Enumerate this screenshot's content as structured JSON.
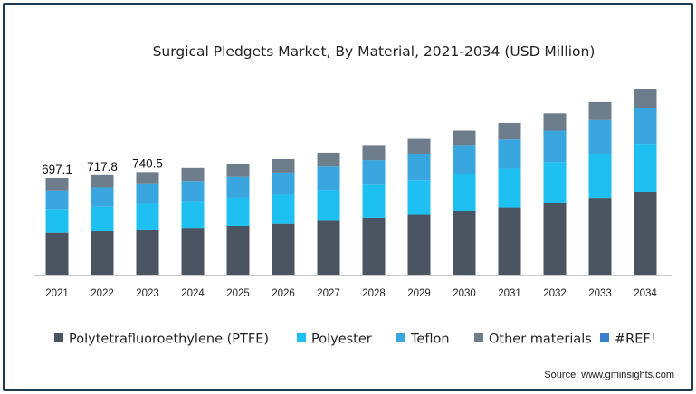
{
  "chart_data": {
    "type": "bar",
    "stacked": true,
    "title": "Surgical Pledgets Market, By Material, 2021-2034 (USD Million)",
    "xlabel": "",
    "ylabel": "",
    "ylim": [
      0,
      1500
    ],
    "grid": false,
    "legend_position": "bottom",
    "categories": [
      "2021",
      "2022",
      "2023",
      "2024",
      "2025",
      "2026",
      "2027",
      "2028",
      "2029",
      "2030",
      "2031",
      "2032",
      "2033",
      "2034"
    ],
    "series": [
      {
        "name": "Polytetrafluoroethylene (PTFE)",
        "color": "#4b5561",
        "values": [
          302,
          313,
          326,
          338,
          352,
          367,
          388,
          411,
          433,
          460,
          485,
          515,
          553,
          597
        ]
      },
      {
        "name": "Polyester",
        "color": "#1ec0f2",
        "values": [
          172,
          178,
          185,
          192,
          202,
          210,
          222,
          236,
          250,
          265,
          280,
          297,
          320,
          347
        ]
      },
      {
        "name": "Teflon",
        "color": "#3aa6e0",
        "values": [
          134,
          138,
          142,
          146,
          151,
          160,
          170,
          180,
          190,
          204,
          211,
          227,
          242,
          256
        ]
      },
      {
        "name": "Other materials",
        "color": "#6e7d8c",
        "values": [
          89.1,
          88.8,
          87.5,
          94,
          95,
          97,
          100,
          102,
          107,
          110,
          119,
          125,
          130,
          140
        ]
      },
      {
        "name": "#REF!",
        "color": "#3b80c9",
        "values": [
          0,
          0,
          0,
          0,
          0,
          0,
          0,
          0,
          0,
          0,
          0,
          0,
          0,
          0
        ]
      }
    ],
    "data_labels": [
      "697.1",
      "717.8",
      "740.5",
      "",
      "",
      "",
      "",
      "",
      "",
      "",
      "",
      "",
      "",
      ""
    ]
  },
  "source": "Source: www.gminsights.com"
}
